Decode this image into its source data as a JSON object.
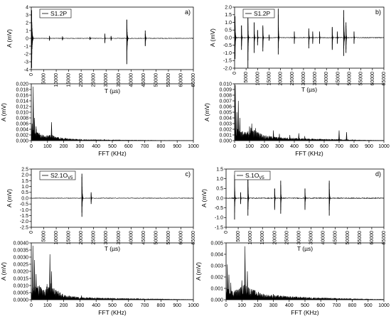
{
  "figure": {
    "background": "#ffffff",
    "ink": "#000000"
  },
  "chart_data": [
    {
      "id": "a_time",
      "type": "line",
      "panel_label": "a)",
      "legend": "S1.2P",
      "xlabel": "T (µs)",
      "ylabel": "A (mV)",
      "xlim": [
        0,
        65000
      ],
      "ylim": [
        -4,
        4
      ],
      "xticks": [
        0,
        5000,
        10000,
        15000,
        20000,
        25000,
        30000,
        35000,
        40000,
        45000,
        50000,
        55000,
        60000,
        65000
      ],
      "yticks": [
        -4,
        -3,
        -2,
        -1,
        0,
        1,
        2,
        3,
        4
      ],
      "noise": 0.03,
      "bursts": [
        {
          "x": 150,
          "amp": 3.6,
          "amp_neg": -3.8,
          "width": 700
        },
        {
          "x": 7300,
          "amp": 0.3,
          "amp_neg": -0.3,
          "width": 300
        },
        {
          "x": 12500,
          "amp": 0.25,
          "amp_neg": -0.25,
          "width": 300
        },
        {
          "x": 23500,
          "amp": 0.2,
          "amp_neg": -0.2,
          "width": 300
        },
        {
          "x": 29500,
          "amp": 0.6,
          "amp_neg": -0.6,
          "width": 300
        },
        {
          "x": 32000,
          "amp": 0.3,
          "amp_neg": -0.3,
          "width": 300
        },
        {
          "x": 38300,
          "amp": 2.4,
          "amp_neg": -3.3,
          "width": 600
        },
        {
          "x": 45700,
          "amp": 1.0,
          "amp_neg": -1.0,
          "width": 500
        }
      ]
    },
    {
      "id": "a_fft",
      "type": "area",
      "panel_label": "",
      "xlabel": "FFT (KHz)",
      "ylabel": "A (mV)",
      "xlim": [
        0,
        1000
      ],
      "ylim": [
        0,
        0.02
      ],
      "xticks": [
        0,
        100,
        200,
        300,
        400,
        500,
        600,
        700,
        800,
        900,
        1000
      ],
      "yticks": [
        0.0,
        0.002,
        0.004,
        0.006,
        0.008,
        0.01,
        0.012,
        0.014,
        0.016,
        0.018,
        0.02
      ],
      "ytick_decimals": 3,
      "spikes": [
        {
          "x": 5,
          "y": 0.006
        },
        {
          "x": 12,
          "y": 0.019
        },
        {
          "x": 20,
          "y": 0.008
        },
        {
          "x": 30,
          "y": 0.005
        },
        {
          "x": 45,
          "y": 0.002
        },
        {
          "x": 125,
          "y": 0.0065
        },
        {
          "x": 160,
          "y": 0.0012
        },
        {
          "x": 300,
          "y": 0.0005
        },
        {
          "x": 450,
          "y": 0.0004
        }
      ],
      "envelope": [
        [
          0,
          0.003
        ],
        [
          30,
          0.0035
        ],
        [
          60,
          0.002
        ],
        [
          90,
          0.0015
        ],
        [
          120,
          0.002
        ],
        [
          150,
          0.0012
        ],
        [
          200,
          0.0008
        ],
        [
          300,
          0.0004
        ],
        [
          450,
          0.0003
        ],
        [
          600,
          0.0002
        ],
        [
          800,
          0.0001
        ],
        [
          1000,
          5e-05
        ]
      ]
    },
    {
      "id": "b_time",
      "type": "line",
      "panel_label": "b)",
      "legend": "S1.2P",
      "xlabel": "T (µs)",
      "ylabel": "A (mV)",
      "xlim": [
        0,
        65000
      ],
      "ylim": [
        -2,
        2
      ],
      "xticks": [
        0,
        5000,
        10000,
        15000,
        20000,
        25000,
        30000,
        35000,
        40000,
        45000,
        50000,
        55000,
        60000,
        65000
      ],
      "yticks": [
        -2.0,
        -1.5,
        -1.0,
        -0.5,
        0.0,
        0.5,
        1.0,
        1.5,
        2.0
      ],
      "ytick_decimals": 1,
      "noise": 0.02,
      "bursts": [
        {
          "x": 200,
          "amp": 1.4,
          "amp_neg": -1.4,
          "width": 500
        },
        {
          "x": 3000,
          "amp": 0.8,
          "amp_neg": -0.8,
          "width": 400
        },
        {
          "x": 5800,
          "amp": 1.5,
          "amp_neg": -2.0,
          "width": 400
        },
        {
          "x": 8500,
          "amp": 1.0,
          "amp_neg": -1.0,
          "width": 400
        },
        {
          "x": 10000,
          "amp": 0.5,
          "amp_neg": -0.5,
          "width": 300
        },
        {
          "x": 12300,
          "amp": 0.8,
          "amp_neg": -0.9,
          "width": 400
        },
        {
          "x": 15000,
          "amp": 0.2,
          "amp_neg": -0.2,
          "width": 300
        },
        {
          "x": 19000,
          "amp": 1.9,
          "amp_neg": -1.1,
          "width": 400
        },
        {
          "x": 26000,
          "amp": 0.4,
          "amp_neg": -0.4,
          "width": 300
        },
        {
          "x": 32300,
          "amp": 0.6,
          "amp_neg": -0.7,
          "width": 400
        },
        {
          "x": 34000,
          "amp": 0.4,
          "amp_neg": -0.4,
          "width": 300
        },
        {
          "x": 37000,
          "amp": 0.4,
          "amp_neg": -0.4,
          "width": 300
        },
        {
          "x": 42500,
          "amp": 0.7,
          "amp_neg": -0.8,
          "width": 400
        },
        {
          "x": 44700,
          "amp": 0.4,
          "amp_neg": -0.4,
          "width": 300
        },
        {
          "x": 47500,
          "amp": 1.8,
          "amp_neg": -1.2,
          "width": 600
        },
        {
          "x": 48500,
          "amp": 1.0,
          "amp_neg": -1.0,
          "width": 400
        },
        {
          "x": 52000,
          "amp": 0.4,
          "amp_neg": -0.4,
          "width": 300
        }
      ]
    },
    {
      "id": "b_fft",
      "type": "area",
      "panel_label": "",
      "xlabel": "FFT (KHz)",
      "ylabel": "A (mV)",
      "xlim": [
        0,
        1000
      ],
      "ylim": [
        0,
        0.01
      ],
      "xticks": [
        0,
        100,
        200,
        300,
        400,
        500,
        600,
        700,
        800,
        900,
        1000
      ],
      "yticks": [
        0.0,
        0.001,
        0.002,
        0.003,
        0.004,
        0.005,
        0.006,
        0.007,
        0.008,
        0.009,
        0.01
      ],
      "ytick_decimals": 3,
      "spikes": [
        {
          "x": 5,
          "y": 0.0098
        },
        {
          "x": 15,
          "y": 0.005
        },
        {
          "x": 25,
          "y": 0.007
        },
        {
          "x": 35,
          "y": 0.004
        },
        {
          "x": 100,
          "y": 0.0025
        },
        {
          "x": 115,
          "y": 0.003
        },
        {
          "x": 140,
          "y": 0.0022
        },
        {
          "x": 260,
          "y": 0.0018
        },
        {
          "x": 300,
          "y": 0.0012
        },
        {
          "x": 370,
          "y": 0.001
        },
        {
          "x": 430,
          "y": 0.0013
        },
        {
          "x": 470,
          "y": 0.0008
        },
        {
          "x": 700,
          "y": 0.0018
        },
        {
          "x": 750,
          "y": 0.0015
        }
      ],
      "envelope": [
        [
          0,
          0.002
        ],
        [
          40,
          0.0015
        ],
        [
          80,
          0.0012
        ],
        [
          110,
          0.002
        ],
        [
          140,
          0.0015
        ],
        [
          200,
          0.0008
        ],
        [
          300,
          0.0005
        ],
        [
          400,
          0.0004
        ],
        [
          500,
          0.0003
        ],
        [
          700,
          0.0002
        ],
        [
          850,
          0.0001
        ],
        [
          1000,
          5e-05
        ]
      ]
    },
    {
      "id": "c_time",
      "type": "line",
      "panel_label": "c)",
      "legend": "S2.1O",
      "legend_sub": "V5",
      "xlabel": "T (µs)",
      "ylabel": "A (mV)",
      "xlim": [
        0,
        65000
      ],
      "ylim": [
        -2.5,
        2.5
      ],
      "xticks": [
        0,
        5000,
        10000,
        15000,
        20000,
        25000,
        30000,
        35000,
        40000,
        45000,
        50000,
        55000,
        60000,
        65000
      ],
      "yticks": [
        -2.5,
        -2.0,
        -1.5,
        -1.0,
        -0.5,
        0.0,
        0.5,
        1.0,
        1.5,
        2.0,
        2.5
      ],
      "ytick_decimals": 1,
      "noise": 0.02,
      "bursts": [
        {
          "x": 20300,
          "amp": 2.1,
          "amp_neg": -1.6,
          "width": 500
        },
        {
          "x": 24000,
          "amp": 0.5,
          "amp_neg": -0.5,
          "width": 400
        }
      ]
    },
    {
      "id": "c_fft",
      "type": "area",
      "panel_label": "",
      "xlabel": "FFT (KHz)",
      "ylabel": "A (mV)",
      "xlim": [
        0,
        1000
      ],
      "ylim": [
        0,
        0.004
      ],
      "xticks": [
        0,
        100,
        200,
        300,
        400,
        500,
        600,
        700,
        800,
        900,
        1000
      ],
      "yticks": [
        0.0,
        0.0005,
        0.001,
        0.0015,
        0.002,
        0.0025,
        0.003,
        0.0035,
        0.004
      ],
      "ytick_decimals": 4,
      "spikes": [
        {
          "x": 10,
          "y": 0.0038
        },
        {
          "x": 20,
          "y": 0.0028
        },
        {
          "x": 30,
          "y": 0.0018
        },
        {
          "x": 50,
          "y": 0.001
        },
        {
          "x": 115,
          "y": 0.0032
        },
        {
          "x": 125,
          "y": 0.002
        },
        {
          "x": 160,
          "y": 0.0006
        },
        {
          "x": 310,
          "y": 0.0003
        }
      ],
      "envelope": [
        [
          0,
          0.0008
        ],
        [
          40,
          0.0009
        ],
        [
          80,
          0.0006
        ],
        [
          110,
          0.0012
        ],
        [
          140,
          0.0007
        ],
        [
          200,
          0.0003
        ],
        [
          300,
          0.00015
        ],
        [
          500,
          0.0001
        ],
        [
          800,
          5e-05
        ],
        [
          1000,
          2e-05
        ]
      ]
    },
    {
      "id": "d_time",
      "type": "line",
      "panel_label": "d)",
      "legend": "S.1O",
      "legend_sub": "V5",
      "xlabel": "T (µs)",
      "ylabel": "A (mV)",
      "xlim": [
        0,
        65000
      ],
      "ylim": [
        -1.5,
        1.5
      ],
      "xticks": [
        0,
        5000,
        10000,
        15000,
        20000,
        25000,
        30000,
        35000,
        40000,
        45000,
        50000,
        55000,
        60000,
        65000
      ],
      "yticks": [
        -1.5,
        -1.0,
        -0.5,
        0.0,
        0.5,
        1.0,
        1.5
      ],
      "ytick_decimals": 1,
      "noise": 0.02,
      "bursts": [
        {
          "x": 3500,
          "amp": 1.2,
          "amp_neg": -1.1,
          "width": 400
        },
        {
          "x": 6000,
          "amp": 0.3,
          "amp_neg": -0.3,
          "width": 300
        },
        {
          "x": 9000,
          "amp": 1.3,
          "amp_neg": -0.9,
          "width": 400
        },
        {
          "x": 20000,
          "amp": 0.5,
          "amp_neg": -0.6,
          "width": 400
        },
        {
          "x": 22500,
          "amp": 0.9,
          "amp_neg": -0.8,
          "width": 400
        },
        {
          "x": 32500,
          "amp": 0.5,
          "amp_neg": -0.6,
          "width": 400
        },
        {
          "x": 42500,
          "amp": 0.9,
          "amp_neg": -0.9,
          "width": 400
        }
      ]
    },
    {
      "id": "d_fft",
      "type": "area",
      "panel_label": "",
      "xlabel": "FFT (KHz)",
      "ylabel": "A (mV)",
      "xlim": [
        0,
        1000
      ],
      "ylim": [
        0,
        0.005
      ],
      "xticks": [
        0,
        100,
        200,
        300,
        400,
        500,
        600,
        700,
        800,
        900,
        1000
      ],
      "yticks": [
        0.0,
        0.001,
        0.002,
        0.003,
        0.004,
        0.005
      ],
      "ytick_decimals": 3,
      "spikes": [
        {
          "x": 8,
          "y": 0.0031
        },
        {
          "x": 18,
          "y": 0.0022
        },
        {
          "x": 30,
          "y": 0.0015
        },
        {
          "x": 100,
          "y": 0.0017
        },
        {
          "x": 120,
          "y": 0.0047
        },
        {
          "x": 135,
          "y": 0.0025
        },
        {
          "x": 300,
          "y": 0.0005
        },
        {
          "x": 330,
          "y": 0.0004
        }
      ],
      "envelope": [
        [
          0,
          0.0009
        ],
        [
          40,
          0.0007
        ],
        [
          80,
          0.0008
        ],
        [
          120,
          0.0012
        ],
        [
          160,
          0.0008
        ],
        [
          250,
          0.0004
        ],
        [
          350,
          0.0003
        ],
        [
          500,
          0.0002
        ],
        [
          750,
          0.0001
        ],
        [
          1000,
          4e-05
        ]
      ]
    }
  ]
}
